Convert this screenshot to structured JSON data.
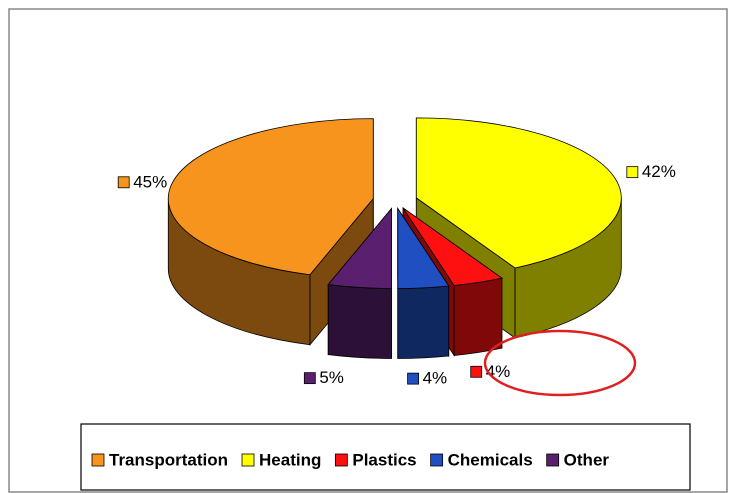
{
  "chart_data": {
    "type": "pie3d",
    "categories": [
      "Transportation",
      "Heating",
      "Plastics",
      "Chemicals",
      "Other"
    ],
    "values": [
      45,
      42,
      4,
      4,
      5
    ],
    "value_labels": [
      "45%",
      "42%",
      "4%",
      "4%",
      "5%"
    ],
    "colors": [
      "#f7941d",
      "#ffff00",
      "#ff1010",
      "#1f4fc0",
      "#5a1f6e"
    ],
    "legend": "bottom"
  }
}
